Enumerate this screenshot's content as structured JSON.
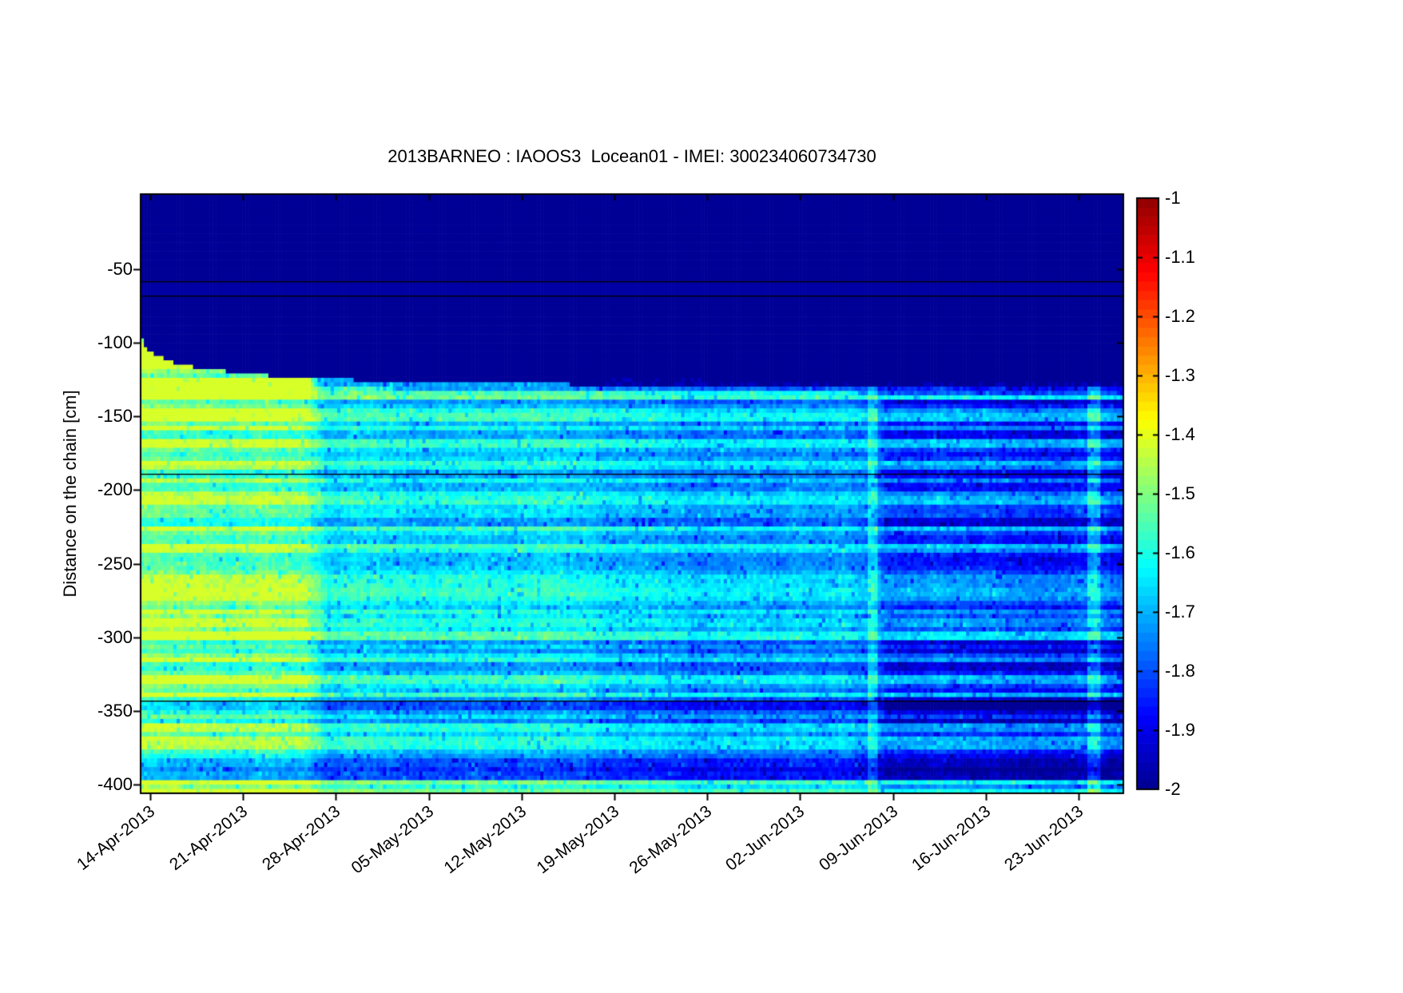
{
  "figure": {
    "background_color": "#ffffff",
    "title": "2013BARNEO : IAOOS3  Locean01 - IMEI: 300234060734730"
  },
  "chart_data": {
    "type": "heatmap",
    "title": "2013BARNEO : IAOOS3  Locean01 - IMEI: 300234060734730",
    "xlabel": "",
    "ylabel": "Distance on the chain [cm]",
    "x_tick_labels": [
      "14-Apr-2013",
      "21-Apr-2013",
      "28-Apr-2013",
      "05-May-2013",
      "12-May-2013",
      "19-May-2013",
      "26-May-2013",
      "02-Jun-2013",
      "09-Jun-2013",
      "16-Jun-2013",
      "23-Jun-2013"
    ],
    "x_axis": {
      "start": "13-Apr-2013",
      "end": "27-Jun-2013",
      "span_days": 74.1,
      "tick_day_offsets": [
        0.72,
        7.72,
        14.72,
        21.72,
        28.72,
        35.72,
        42.72,
        49.72,
        56.72,
        63.72,
        70.72
      ]
    },
    "y_tick_labels": [
      "-50",
      "-100",
      "-150",
      "-200",
      "-250",
      "-300",
      "-350",
      "-400"
    ],
    "y_tick_values_cm": [
      -50,
      -100,
      -150,
      -200,
      -250,
      -300,
      -350,
      -400
    ],
    "y_axis_range_cm": [
      1,
      -406
    ],
    "colorbar": {
      "colormap": "jet",
      "levels": 64,
      "clim": [
        -2,
        -1
      ],
      "tick_labels": [
        "-1",
        "-1.1",
        "-1.2",
        "-1.3",
        "-1.4",
        "-1.5",
        "-1.6",
        "-1.7",
        "-1.8",
        "-1.9",
        "-2"
      ],
      "tick_values": [
        -1,
        -1.1,
        -1.2,
        -1.3,
        -1.4,
        -1.5,
        -1.6,
        -1.7,
        -1.8,
        -1.9,
        -2
      ]
    },
    "above_interface_value": -2,
    "interface_depth_anchors_day_cm": [
      [
        0,
        -96
      ],
      [
        0.4,
        -104
      ],
      [
        1.5,
        -110
      ],
      [
        3,
        -115
      ],
      [
        6,
        -119
      ],
      [
        9,
        -122
      ],
      [
        13,
        -124
      ],
      [
        18,
        -126
      ],
      [
        25,
        -127.5
      ],
      [
        35,
        -128.5
      ],
      [
        50,
        -129
      ],
      [
        74.1,
        -130
      ]
    ],
    "horizontal_black_line_depths_cm": [
      -58,
      -68,
      -189,
      -343
    ],
    "vertical_bright_band_day_ranges": [
      [
        54.9,
        55.6
      ],
      [
        71.4,
        72.3
      ]
    ],
    "dark_bottom_band_depth_range_cm": [
      -383,
      -396
    ],
    "temperature_grid": {
      "time_anchor_days": [
        0,
        12,
        14,
        33,
        35,
        55,
        56.5,
        74.1
      ],
      "depth_bins_cm": [
        -135,
        -165,
        -200,
        -240,
        -280,
        -320,
        -360,
        -395
      ],
      "values": [
        [
          -1.5,
          -1.56,
          -1.56,
          -1.55,
          -1.52,
          -1.52,
          -1.56,
          -1.64
        ],
        [
          -1.52,
          -1.57,
          -1.57,
          -1.56,
          -1.53,
          -1.53,
          -1.57,
          -1.65
        ],
        [
          -1.6,
          -1.63,
          -1.63,
          -1.62,
          -1.61,
          -1.61,
          -1.63,
          -1.68
        ],
        [
          -1.62,
          -1.64,
          -1.64,
          -1.63,
          -1.62,
          -1.62,
          -1.64,
          -1.7
        ],
        [
          -1.66,
          -1.68,
          -1.68,
          -1.67,
          -1.66,
          -1.67,
          -1.69,
          -1.73
        ],
        [
          -1.69,
          -1.71,
          -1.71,
          -1.7,
          -1.69,
          -1.7,
          -1.72,
          -1.76
        ],
        [
          -1.76,
          -1.78,
          -1.78,
          -1.77,
          -1.76,
          -1.77,
          -1.79,
          -1.83
        ],
        [
          -1.78,
          -1.8,
          -1.8,
          -1.79,
          -1.78,
          -1.79,
          -1.81,
          -1.85
        ]
      ]
    }
  }
}
